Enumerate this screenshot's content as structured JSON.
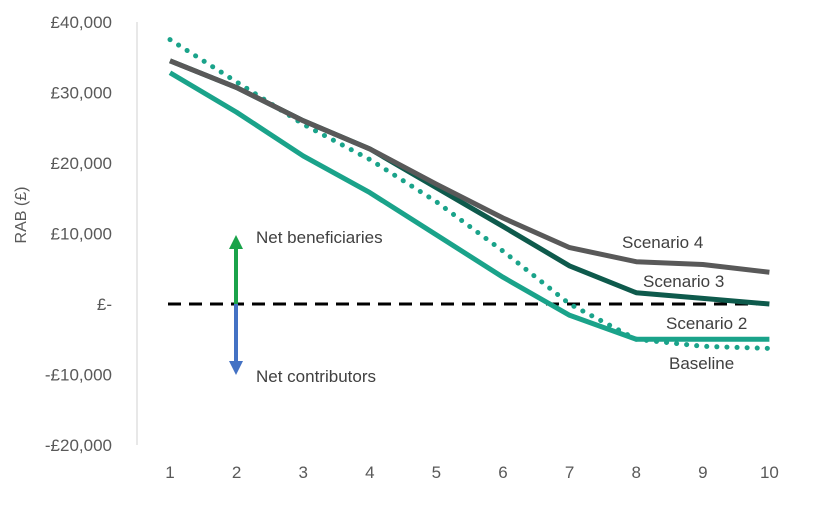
{
  "chart_data": {
    "type": "line",
    "ylabel": "RAB (£)",
    "xlabel": "",
    "x": [
      1,
      2,
      3,
      4,
      5,
      6,
      7,
      8,
      9,
      10
    ],
    "ylim": [
      -20000,
      40000
    ],
    "yticks": [
      40000,
      30000,
      20000,
      10000,
      0,
      -10000,
      -20000
    ],
    "ytick_labels": [
      "£40,000",
      "£30,000",
      "£20,000",
      "£10,000",
      "£-",
      "-£10,000",
      "-£20,000"
    ],
    "grid": false,
    "series": [
      {
        "name": "Baseline",
        "color": "#1aa38a",
        "style": "dotted",
        "values": [
          37500,
          31500,
          25500,
          20500,
          14500,
          7500,
          0,
          -5000,
          -6000,
          -6300
        ]
      },
      {
        "name": "Scenario 2",
        "color": "#1aa38a",
        "style": "solid",
        "values": [
          32800,
          27200,
          21000,
          15800,
          9800,
          3800,
          -1600,
          -5000,
          -5000,
          -5000
        ]
      },
      {
        "name": "Scenario 3",
        "color": "#0e5a4c",
        "style": "solid",
        "values": [
          34500,
          30700,
          26000,
          22000,
          16500,
          11000,
          5400,
          1600,
          800,
          0
        ]
      },
      {
        "name": "Scenario 4",
        "color": "#595959",
        "style": "solid",
        "values": [
          34500,
          30700,
          26000,
          22000,
          17000,
          12200,
          8000,
          6000,
          5600,
          4500
        ]
      }
    ],
    "reference_line": {
      "value": 0,
      "style": "dashed",
      "color": "#000000"
    },
    "annotations": {
      "net_beneficiaries": "Net beneficiaries",
      "net_contributors": "Net contributors",
      "arrow_up_color": "#1aa34a",
      "arrow_down_color": "#4472c4"
    }
  }
}
